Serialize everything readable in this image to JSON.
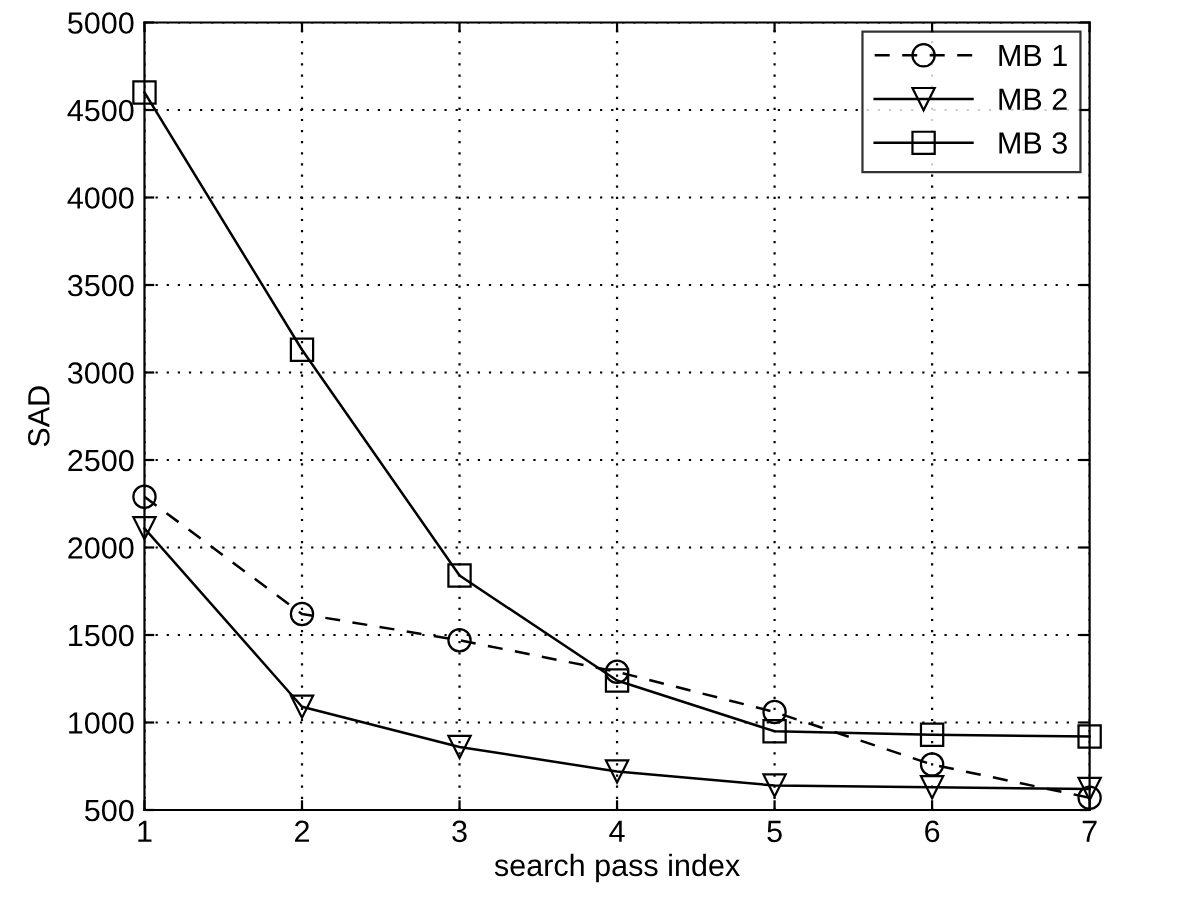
{
  "chart_data": {
    "type": "line",
    "xlabel": "search pass index",
    "ylabel": "SAD",
    "x": [
      1,
      2,
      3,
      4,
      5,
      6,
      7
    ],
    "series": [
      {
        "name": "MB 1",
        "color": "#000000",
        "marker": "circle",
        "line_style": "dashed",
        "values": [
          2290,
          1620,
          1470,
          1290,
          1060,
          760,
          570
        ]
      },
      {
        "name": "MB 2",
        "color": "#000000",
        "marker": "triangle",
        "line_style": "solid",
        "values": [
          2110,
          1090,
          860,
          720,
          640,
          630,
          620
        ]
      },
      {
        "name": "MB 3",
        "color": "#000000",
        "marker": "square",
        "line_style": "solid",
        "values": [
          4600,
          3130,
          1840,
          1240,
          950,
          930,
          920
        ]
      }
    ],
    "xlim": [
      1,
      7
    ],
    "xticks": [
      1,
      2,
      3,
      4,
      5,
      6,
      7
    ],
    "ylim": [
      500,
      5000
    ],
    "yticks": [
      500,
      1000,
      1500,
      2000,
      2500,
      3000,
      3500,
      4000,
      4500,
      5000
    ],
    "grid": true,
    "legend": "top right"
  }
}
